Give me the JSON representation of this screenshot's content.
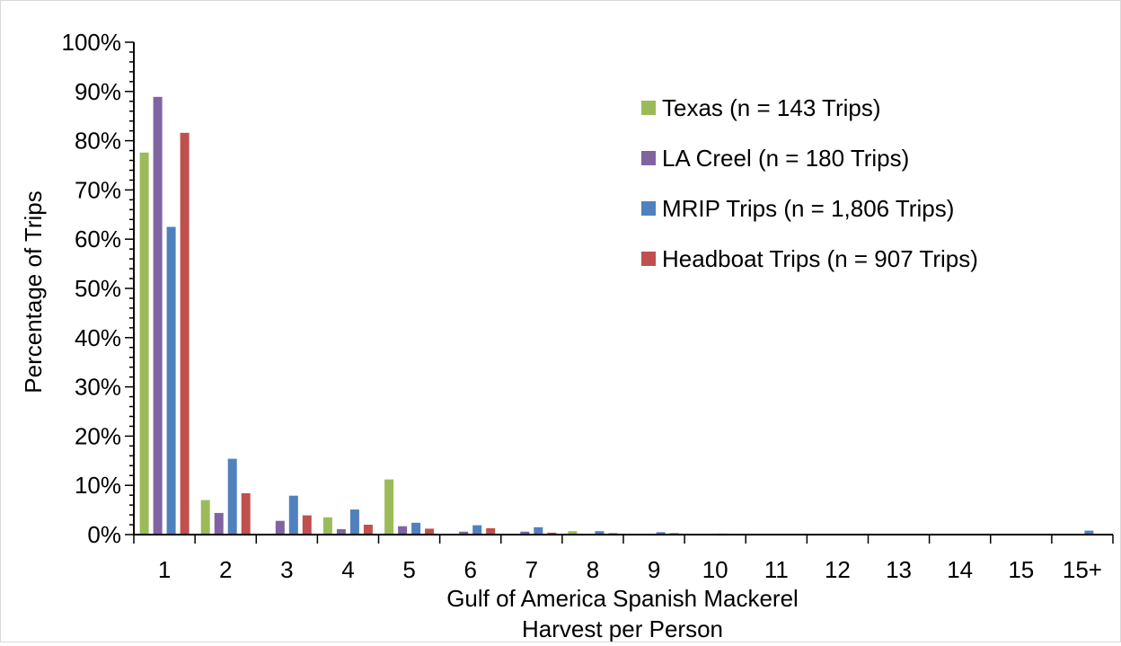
{
  "chart_data": {
    "type": "bar",
    "title": "",
    "xlabel_lines": [
      "Gulf of America Spanish Mackerel",
      "Harvest per Person"
    ],
    "ylabel": "Percentage of Trips",
    "ylim": [
      0,
      100
    ],
    "yticks": [
      "0%",
      "10%",
      "20%",
      "30%",
      "40%",
      "50%",
      "60%",
      "70%",
      "80%",
      "90%",
      "100%"
    ],
    "categories": [
      "1",
      "2",
      "3",
      "4",
      "5",
      "6",
      "7",
      "8",
      "9",
      "10",
      "11",
      "12",
      "13",
      "14",
      "15",
      "15+"
    ],
    "legend_position": "top-right",
    "grid": false,
    "series": [
      {
        "name": "Texas (n = 143 Trips)",
        "color": "#9bbb59",
        "values": [
          77.6,
          7.0,
          0,
          3.5,
          11.2,
          0,
          0,
          0.7,
          0,
          0,
          0,
          0,
          0,
          0,
          0,
          0
        ]
      },
      {
        "name": "LA Creel (n = 180 Trips)",
        "color": "#8064a2",
        "values": [
          88.9,
          4.4,
          2.8,
          1.1,
          1.7,
          0.6,
          0.6,
          0,
          0,
          0,
          0,
          0,
          0,
          0,
          0,
          0
        ]
      },
      {
        "name": "MRIP Trips (n = 1,806 Trips)",
        "color": "#4f81bd",
        "values": [
          62.5,
          15.4,
          7.9,
          5.1,
          2.4,
          1.9,
          1.5,
          0.7,
          0.5,
          0.2,
          0.1,
          0.1,
          0,
          0.1,
          0,
          0.8
        ]
      },
      {
        "name": "Headboat Trips (n = 907 Trips)",
        "color": "#c0504d",
        "values": [
          81.6,
          8.4,
          3.9,
          2.0,
          1.2,
          1.3,
          0.4,
          0.3,
          0.3,
          0.1,
          0,
          0,
          0,
          0,
          0,
          0
        ]
      }
    ]
  }
}
